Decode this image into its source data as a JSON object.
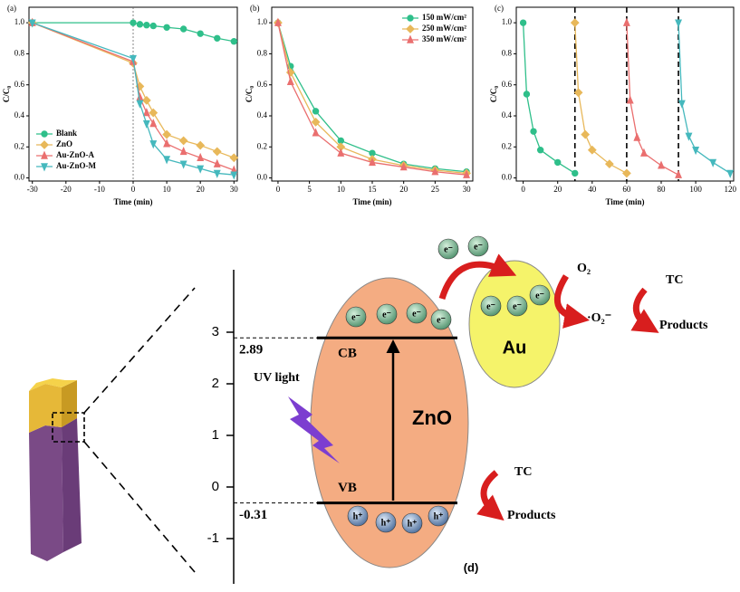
{
  "chart_data": [
    {
      "type": "line",
      "panel_label": "(a)",
      "x_label": "Time (min)",
      "y_label": "C/C₀",
      "xlim": [
        -31,
        31
      ],
      "xticks": [
        -30,
        -20,
        -10,
        0,
        10,
        20,
        30
      ],
      "ylim": [
        -0.02,
        1.1
      ],
      "yticks": [
        {
          "value": 0,
          "label": "0.0"
        },
        0.2,
        0.4,
        0.6,
        0.8,
        {
          "value": 1,
          "label": "1.0"
        }
      ],
      "vlines": [
        0
      ],
      "vline_style": "dotted",
      "legend": "lower left",
      "x": [
        -30,
        0,
        2,
        4,
        6,
        10,
        15,
        20,
        25,
        30
      ],
      "series": [
        {
          "name": "Blank",
          "color": "#2fbf8a",
          "marker": "circle",
          "values": [
            1.0,
            1.0,
            0.99,
            0.985,
            0.98,
            0.97,
            0.96,
            0.93,
            0.9,
            0.88
          ]
        },
        {
          "name": "ZnO",
          "color": "#e8b85a",
          "marker": "diamond",
          "values": [
            1.0,
            0.74,
            0.59,
            0.5,
            0.42,
            0.28,
            0.24,
            0.21,
            0.17,
            0.13
          ]
        },
        {
          "name": "Au-ZnO-A",
          "color": "#ea6f6f",
          "marker": "triangle-up",
          "values": [
            1.0,
            0.75,
            0.52,
            0.42,
            0.35,
            0.22,
            0.17,
            0.13,
            0.09,
            0.05
          ]
        },
        {
          "name": "Au-ZnO-M",
          "color": "#45b8bd",
          "marker": "triangle-down",
          "values": [
            1.0,
            0.77,
            0.48,
            0.35,
            0.22,
            0.12,
            0.09,
            0.06,
            0.03,
            0.02
          ]
        }
      ]
    },
    {
      "type": "line",
      "panel_label": "(b)",
      "x_label": "Time (min)",
      "y_label": "C/C₀",
      "xlim": [
        -1,
        31
      ],
      "xticks": [
        0,
        5,
        10,
        15,
        20,
        25,
        30
      ],
      "ylim": [
        -0.02,
        1.1
      ],
      "yticks": [
        {
          "value": 0,
          "label": "0.0"
        },
        0.2,
        0.4,
        0.6,
        0.8,
        {
          "value": 1,
          "label": "1.0"
        }
      ],
      "legend": "upper right",
      "x": [
        0,
        2,
        6,
        10,
        15,
        20,
        25,
        30
      ],
      "series": [
        {
          "name": "150 mW/cm²",
          "color": "#2fbf8a",
          "marker": "circle",
          "values": [
            1.0,
            0.72,
            0.43,
            0.24,
            0.16,
            0.09,
            0.06,
            0.04
          ]
        },
        {
          "name": "250 mW/cm²",
          "color": "#e8b85a",
          "marker": "diamond",
          "values": [
            1.0,
            0.68,
            0.36,
            0.2,
            0.12,
            0.08,
            0.05,
            0.03
          ]
        },
        {
          "name": "350 mW/cm²",
          "color": "#ea6f6f",
          "marker": "triangle-up",
          "values": [
            1.0,
            0.62,
            0.29,
            0.16,
            0.1,
            0.07,
            0.04,
            0.02
          ]
        }
      ]
    },
    {
      "type": "line",
      "panel_label": "(c)",
      "x_label": "Time (min)",
      "y_label": "C/C₀",
      "xlim": [
        -4,
        122
      ],
      "xticks": [
        0,
        20,
        40,
        60,
        80,
        100,
        120
      ],
      "ylim": [
        -0.02,
        1.1
      ],
      "yticks": [
        {
          "value": 0,
          "label": "0.0"
        },
        0.2,
        0.4,
        0.6,
        0.8,
        {
          "value": 1,
          "label": "1.0"
        }
      ],
      "vlines": [
        30,
        60,
        90
      ],
      "vline_style": "dashed",
      "series": [
        {
          "color": "#2fbf8a",
          "marker": "circle",
          "x": [
            0,
            2,
            6,
            10,
            20,
            30
          ],
          "values": [
            1.0,
            0.54,
            0.3,
            0.18,
            0.1,
            0.03
          ]
        },
        {
          "color": "#e8b85a",
          "marker": "diamond",
          "x": [
            30,
            32,
            36,
            40,
            50,
            60
          ],
          "values": [
            1.0,
            0.55,
            0.28,
            0.18,
            0.09,
            0.03
          ]
        },
        {
          "color": "#ea6f6f",
          "marker": "triangle-up",
          "x": [
            60,
            62,
            66,
            70,
            80,
            90
          ],
          "values": [
            1.0,
            0.5,
            0.26,
            0.16,
            0.08,
            0.02
          ]
        },
        {
          "color": "#45b8bd",
          "marker": "triangle-down",
          "x": [
            90,
            92,
            96,
            100,
            110,
            120
          ],
          "values": [
            1.0,
            0.48,
            0.27,
            0.18,
            0.1,
            0.03
          ]
        }
      ]
    }
  ],
  "diagram": {
    "panel_label": "(d)",
    "energy_ticks": [
      3,
      2,
      1,
      0,
      -1
    ],
    "zno": {
      "label": "ZnO",
      "cb_label": "CB",
      "vb_label": "VB",
      "cb": 2.89,
      "vb": -0.31,
      "electrons": [
        "e⁻",
        "e⁻",
        "e⁻",
        "e⁻"
      ],
      "holes": [
        "h⁺",
        "h⁺",
        "h⁺",
        "h⁺"
      ]
    },
    "light": "UV light",
    "au": {
      "label": "Au",
      "electrons": [
        "e⁻",
        "e⁻",
        "e⁻"
      ]
    },
    "free_electrons": [
      "e⁻",
      "e⁻"
    ],
    "oxygen": {
      "reactant": "O₂",
      "product": "·O₂⁻"
    },
    "tc_upper": {
      "reactant": "TC",
      "product": "Products"
    },
    "tc_lower": {
      "reactant": "TC",
      "product": "Products"
    }
  }
}
